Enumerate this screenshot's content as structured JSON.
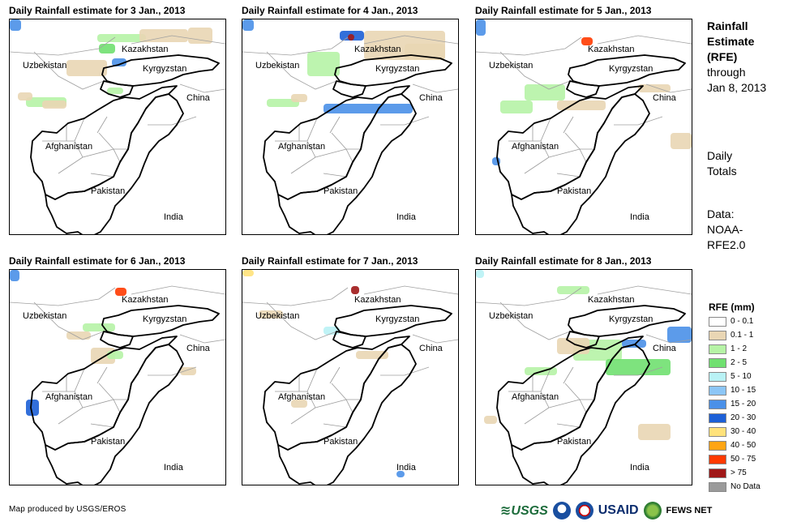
{
  "panels": [
    {
      "title": "Daily Rainfall estimate for 3 Jan., 2013",
      "rain_level": "moderate"
    },
    {
      "title": "Daily Rainfall estimate for 4 Jan., 2013",
      "rain_level": "heavy-north"
    },
    {
      "title": "Daily Rainfall estimate for 5 Jan., 2013",
      "rain_level": "light"
    },
    {
      "title": "Daily Rainfall estimate for 6 Jan., 2013",
      "rain_level": "light"
    },
    {
      "title": "Daily Rainfall estimate for 7 Jan., 2013",
      "rain_level": "very-light"
    },
    {
      "title": "Daily Rainfall estimate for 8 Jan., 2013",
      "rain_level": "east"
    }
  ],
  "map_labels": {
    "kazakhstan": "Kazakhstan",
    "uzbekistan": "Uzbekistan",
    "kyrgyzstan": "Kyrgyzstan",
    "china": "China",
    "afghanistan": "Afghanistan",
    "pakistan": "Pakistan",
    "india": "India"
  },
  "side_info": {
    "title_line1": "Rainfall",
    "title_line2": "Estimate",
    "title_line3": "(RFE)",
    "through": "through",
    "date": "Jan 8, 2013",
    "daily1": "Daily",
    "daily2": "Totals",
    "data1": "Data:",
    "data2": "NOAA-",
    "data3": "RFE2.0"
  },
  "legend": {
    "title": "RFE (mm)",
    "items": [
      {
        "label": "0 - 0.1",
        "color": "#ffffff"
      },
      {
        "label": "0.1 - 1",
        "color": "#e9d6b4"
      },
      {
        "label": "1 - 2",
        "color": "#b6f3a6"
      },
      {
        "label": "2 - 5",
        "color": "#70e070"
      },
      {
        "label": "5 - 10",
        "color": "#b9f2f5"
      },
      {
        "label": "10 - 15",
        "color": "#8cc6f6"
      },
      {
        "label": "15 - 20",
        "color": "#4a90e8"
      },
      {
        "label": "20 - 30",
        "color": "#1c5fd6"
      },
      {
        "label": "30 - 40",
        "color": "#ffe27a"
      },
      {
        "label": "40 - 50",
        "color": "#ffa514"
      },
      {
        "label": "50 - 75",
        "color": "#ff3a00"
      },
      {
        "label": "> 75",
        "color": "#a01818"
      },
      {
        "label": "No Data",
        "color": "#9a9a9a"
      }
    ]
  },
  "credit": "Map produced by USGS/EROS",
  "logos": {
    "usgs": "USGS",
    "usaid": "USAID",
    "fews": "FEWS NET"
  }
}
